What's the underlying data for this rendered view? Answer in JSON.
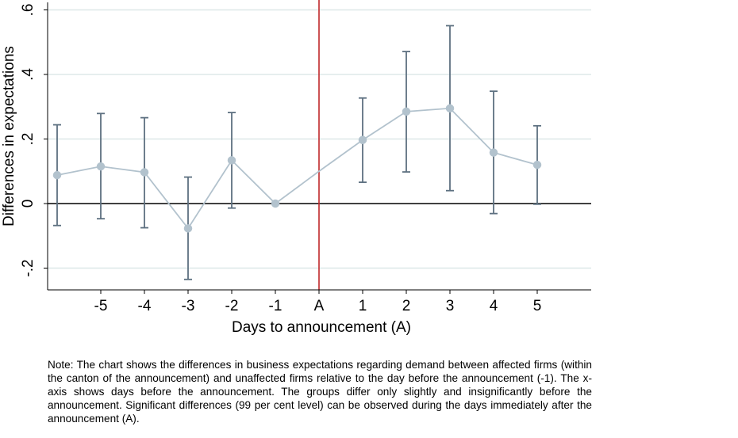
{
  "chart_data": {
    "type": "line",
    "xlabel": "Days to announcement (A)",
    "ylabel": "Differences in expectations",
    "ylim": [
      -0.26,
      0.62
    ],
    "yticks": [
      -0.2,
      0,
      0.2,
      0.4,
      0.6
    ],
    "ytick_labels": [
      "-.2",
      "0",
      ".2",
      ".4",
      ".6"
    ],
    "x_categories": [
      "-6",
      "-5",
      "-4",
      "-3",
      "-2",
      "-1",
      "A",
      "1",
      "2",
      "3",
      "4",
      "5"
    ],
    "xtick_labels": [
      "",
      "-5",
      "-4",
      "-3",
      "-2",
      "-1",
      "A",
      "1",
      "2",
      "3",
      "4",
      "5"
    ],
    "announcement_category": "A",
    "grid": true,
    "zero_line": true,
    "colors": {
      "series": "#b2c2cd",
      "error_bars": "#5d7080",
      "announcement_line": "#c0282a",
      "grid": "#dde8e8",
      "zero_line": "#000000"
    },
    "series": [
      {
        "x": [
          "-6",
          "-5",
          "-4",
          "-3",
          "-2",
          "-1",
          "A",
          "1",
          "2",
          "3",
          "4",
          "5"
        ],
        "y": [
          0.088,
          0.115,
          0.097,
          -0.077,
          0.134,
          0.0,
          0.1,
          0.197,
          0.285,
          0.295,
          0.158,
          0.12
        ],
        "markers": [
          true,
          true,
          true,
          true,
          true,
          true,
          false,
          true,
          true,
          true,
          true,
          true
        ],
        "ci_low": [
          -0.068,
          -0.047,
          -0.075,
          -0.235,
          -0.014,
          null,
          null,
          0.066,
          0.098,
          0.04,
          -0.031,
          -0.002
        ],
        "ci_high": [
          0.244,
          0.279,
          0.266,
          0.082,
          0.282,
          null,
          null,
          0.327,
          0.471,
          0.551,
          0.348,
          0.241
        ]
      }
    ]
  },
  "note": "Note: The chart shows the differences in business expectations regarding demand between affected firms (within the canton of the announcement) and unaffected firms relative to the day before the announcement (-1). The x-axis shows days before the announcement. The groups differ only slightly and insignificantly before the announcement. Significant differences (99 per cent level) can be observed during the days immediately after the announcement (A)."
}
